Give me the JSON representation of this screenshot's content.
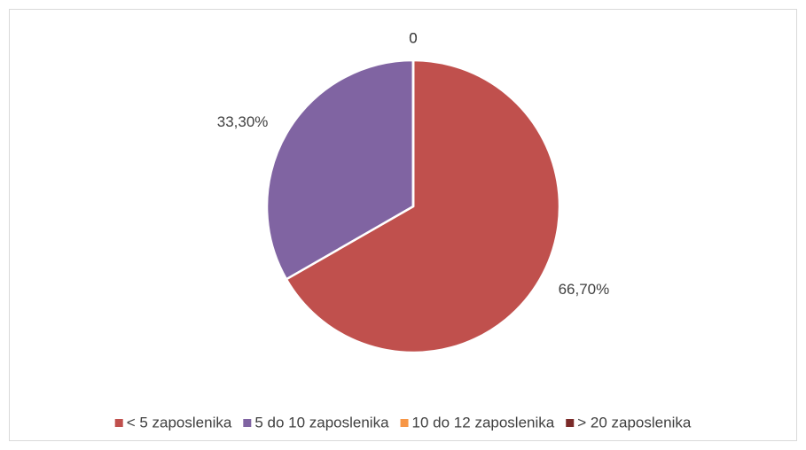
{
  "chart_data": {
    "type": "pie",
    "categories": [
      "< 5 zaposlenika",
      "5 do 10 zaposlenika",
      "10 do 12 zaposlenika",
      "> 20 zaposlenika"
    ],
    "values": [
      66.7,
      33.3,
      0,
      0
    ],
    "value_labels": [
      "66,70%",
      "33,30%",
      "0",
      "0"
    ],
    "colors": [
      "#c0504d",
      "#8064a2",
      "#f79646",
      "#7b2b29"
    ],
    "legend": "bottom"
  }
}
